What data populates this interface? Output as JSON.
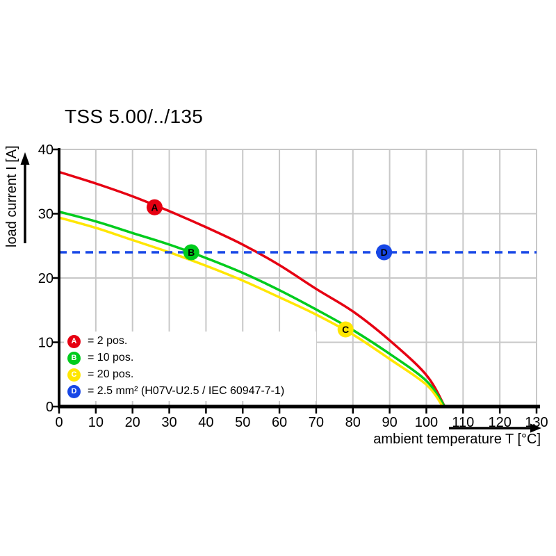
{
  "title": "TSS 5.00/../135",
  "colors": {
    "red": "#e60012",
    "green": "#00cc1d",
    "yellow": "#ffe600",
    "blue": "#1747e6",
    "grid": "#c8c8c8",
    "axis": "#000000",
    "marker_letter": "#ffffff"
  },
  "axes": {
    "x": {
      "label": "ambient temperature T [°C]",
      "ticks": [
        0,
        10,
        20,
        30,
        40,
        50,
        60,
        70,
        80,
        90,
        100,
        110,
        120,
        130
      ]
    },
    "y": {
      "label": "load current I [A]",
      "ticks": [
        0,
        10,
        20,
        30,
        40
      ]
    }
  },
  "legend": {
    "items": [
      {
        "letter": "A",
        "color": "#e60012",
        "label": "= 2 pos."
      },
      {
        "letter": "B",
        "color": "#00cc1d",
        "label": "= 10 pos."
      },
      {
        "letter": "C",
        "color": "#ffe600",
        "label": "= 20 pos."
      },
      {
        "letter": "D",
        "color": "#1747e6",
        "label": "= 2.5 mm² (H07V-U2.5 / IEC 60947-7-1)"
      }
    ]
  },
  "chart_data": {
    "type": "line",
    "title": "TSS 5.00/../135",
    "xlabel": "ambient temperature T [°C]",
    "ylabel": "load current I [A]",
    "xlim": [
      0,
      130
    ],
    "ylim": [
      0,
      40
    ],
    "grid": true,
    "legend_position": "lower-left",
    "series": [
      {
        "name": "A = 2 pos.",
        "color": "#e60012",
        "style": "solid",
        "x": [
          0,
          10,
          20,
          30,
          40,
          50,
          60,
          70,
          80,
          90,
          100,
          105
        ],
        "y": [
          36.5,
          34.7,
          32.7,
          30.4,
          27.9,
          25.2,
          22.0,
          18.3,
          14.8,
          10.3,
          4.9,
          0
        ]
      },
      {
        "name": "B = 10 pos.",
        "color": "#00cc1d",
        "style": "solid",
        "x": [
          0,
          10,
          20,
          30,
          40,
          50,
          60,
          70,
          80,
          90,
          100,
          105
        ],
        "y": [
          30.3,
          28.8,
          27.0,
          25.2,
          23.1,
          20.8,
          18.1,
          15.1,
          11.9,
          8.2,
          4.0,
          0
        ]
      },
      {
        "name": "C = 20 pos.",
        "color": "#ffe600",
        "style": "solid",
        "x": [
          0,
          10,
          20,
          30,
          40,
          50,
          60,
          70,
          80,
          90,
          100,
          104.5
        ],
        "y": [
          29.4,
          27.8,
          25.9,
          24.0,
          21.9,
          19.6,
          17.0,
          14.3,
          11.2,
          7.4,
          3.4,
          0
        ]
      },
      {
        "name": "D = 2.5 mm² (H07V-U2.5 / IEC 60947-7-1)",
        "color": "#1747e6",
        "style": "dashed",
        "x": [
          0,
          130
        ],
        "y": [
          24,
          24
        ]
      }
    ],
    "markers": [
      {
        "letter": "A",
        "x": 26,
        "y": 31,
        "color": "#e60012"
      },
      {
        "letter": "B",
        "x": 36,
        "y": 24,
        "color": "#00cc1d"
      },
      {
        "letter": "C",
        "x": 78,
        "y": 12,
        "color": "#ffe600"
      },
      {
        "letter": "D",
        "x": 88.5,
        "y": 24,
        "color": "#1747e6"
      }
    ]
  }
}
